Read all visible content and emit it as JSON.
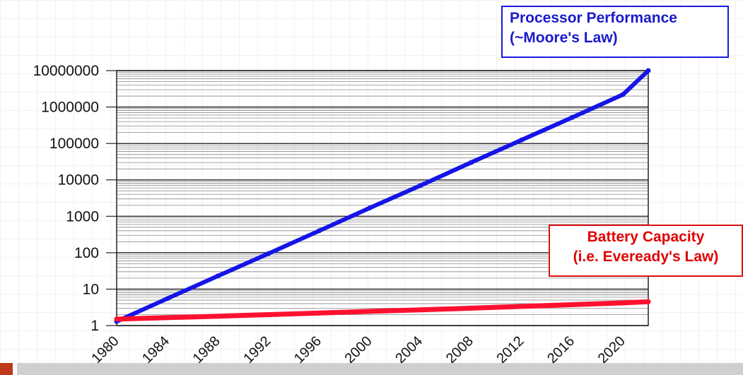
{
  "chart_data": {
    "type": "line",
    "title": "",
    "xlabel": "",
    "ylabel": "",
    "y_scale": "log",
    "ylim": [
      1,
      10000000
    ],
    "xlim": [
      1980,
      2022
    ],
    "x_ticks": [
      "1980",
      "1984",
      "1988",
      "1992",
      "1996",
      "2000",
      "2004",
      "2008",
      "2012",
      "2016",
      "2020"
    ],
    "y_ticks": [
      "10000000",
      "1000000",
      "100000",
      "10000",
      "1000",
      "100",
      "10",
      "1"
    ],
    "grid": true,
    "series": [
      {
        "name": "Processor Performance (~Moore's Law)",
        "color": "#1515e8",
        "x": [
          1980,
          1984,
          1988,
          1992,
          1996,
          2000,
          2004,
          2008,
          2012,
          2016,
          2020,
          2022
        ],
        "y": [
          1.3,
          5.5,
          23,
          95,
          400,
          1700,
          7000,
          30000,
          125000,
          520000,
          2200000,
          10000000
        ]
      },
      {
        "name": "Battery Capacity (i.e. Eveready's Law)",
        "color": "#ff1030",
        "x": [
          1980,
          1984,
          1988,
          1992,
          1996,
          2000,
          2004,
          2008,
          2012,
          2016,
          2020,
          2022
        ],
        "y": [
          1.5,
          1.65,
          1.8,
          2.0,
          2.2,
          2.45,
          2.7,
          3.0,
          3.35,
          3.75,
          4.2,
          4.5
        ]
      }
    ],
    "annotations": [
      {
        "series": 0,
        "lines": [
          "Processor Performance",
          "(~Moore's Law)"
        ],
        "color": "#1a1acc"
      },
      {
        "series": 1,
        "lines": [
          "Battery Capacity",
          "(i.e. Eveready's Law)"
        ],
        "color": "#e00000"
      }
    ]
  }
}
